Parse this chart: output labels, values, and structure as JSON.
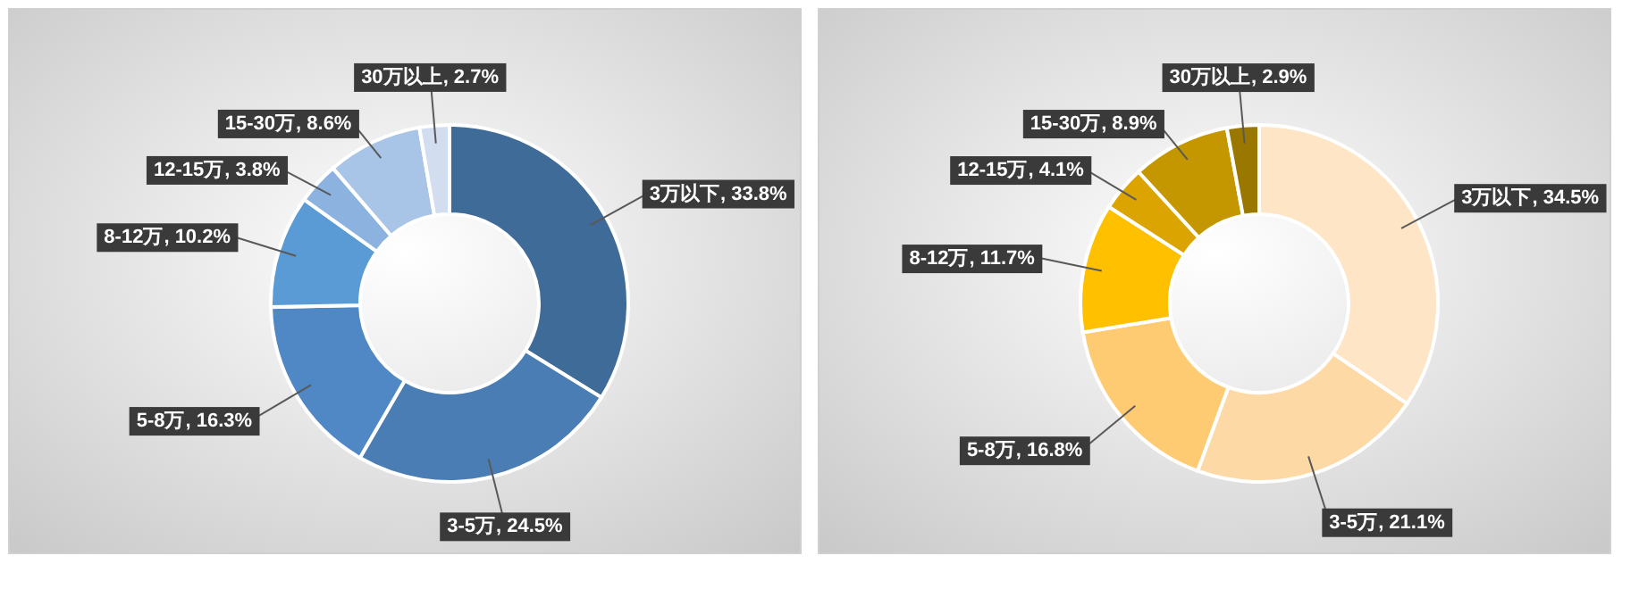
{
  "chart_data": [
    {
      "type": "donut",
      "categories": [
        "3万以下",
        "3-5万",
        "5-8万",
        "8-12万",
        "12-15万",
        "15-30万",
        "30万以上"
      ],
      "values": [
        33.8,
        24.5,
        16.3,
        10.2,
        3.8,
        8.6,
        2.7
      ],
      "colors": [
        "#3f6b98",
        "#4a7db3",
        "#4f88c4",
        "#5b9bd5",
        "#8cb3df",
        "#a8c4e7",
        "#d2def0"
      ],
      "value_labels": [
        ", 33.8%",
        ", 24.5%",
        ", 16.3%",
        ", 10.2%",
        ", 3.8%",
        ", 8.6%",
        ", 2.7%"
      ]
    },
    {
      "type": "donut",
      "categories": [
        "3万以下",
        "3-5万",
        "5-8万",
        "8-12万",
        "12-15万",
        "15-30万",
        "30万以上"
      ],
      "values": [
        34.5,
        21.1,
        16.8,
        11.7,
        4.1,
        8.9,
        2.9
      ],
      "colors": [
        "#fde5c6",
        "#fdd9a6",
        "#ffcb72",
        "#ffc000",
        "#dba400",
        "#c49700",
        "#9a7800"
      ],
      "value_labels": [
        ", 34.5%",
        ", 21.1%",
        ", 16.8%",
        ", 11.7%",
        ", 4.1%",
        ", 8.9%",
        ", 2.9%"
      ]
    }
  ]
}
